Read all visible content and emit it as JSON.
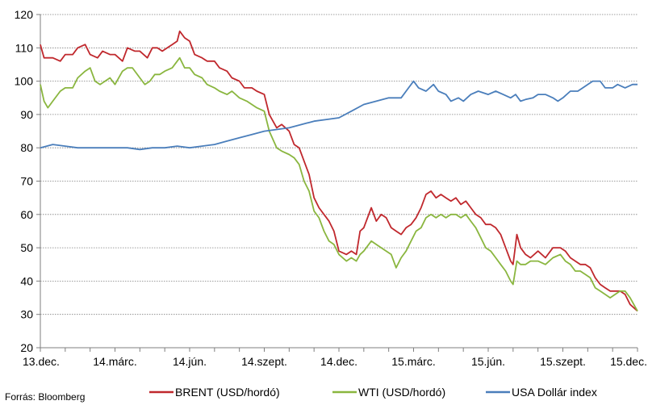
{
  "source_label": "Forrás: Bloomberg",
  "chart_data": {
    "type": "line",
    "x_tick_labels": [
      "13.dec.",
      "14.márc.",
      "14.jún.",
      "14.szept.",
      "14.dec.",
      "15.márc.",
      "15.jún.",
      "15.szept.",
      "15.dec."
    ],
    "ylim": [
      20,
      120
    ],
    "y_ticks": [
      20,
      30,
      40,
      50,
      60,
      70,
      80,
      90,
      100,
      110,
      120
    ],
    "grid": "horizontal dotted",
    "legend_position": "bottom",
    "x_unit": "months since 13.dec.",
    "series": [
      {
        "name": "BRENT (USD/hordó)",
        "color": "#c0282d",
        "points": [
          [
            0,
            111
          ],
          [
            0.15,
            107
          ],
          [
            0.5,
            107
          ],
          [
            0.8,
            106
          ],
          [
            1.0,
            108
          ],
          [
            1.3,
            108
          ],
          [
            1.5,
            110
          ],
          [
            1.8,
            111
          ],
          [
            2.0,
            108
          ],
          [
            2.3,
            107
          ],
          [
            2.5,
            109
          ],
          [
            2.8,
            108
          ],
          [
            3.0,
            108
          ],
          [
            3.3,
            106
          ],
          [
            3.5,
            110
          ],
          [
            3.8,
            109
          ],
          [
            4.0,
            109
          ],
          [
            4.3,
            107
          ],
          [
            4.5,
            110
          ],
          [
            4.7,
            110
          ],
          [
            4.9,
            109
          ],
          [
            5.1,
            110
          ],
          [
            5.3,
            111
          ],
          [
            5.5,
            112
          ],
          [
            5.6,
            115
          ],
          [
            5.8,
            113
          ],
          [
            6.0,
            112
          ],
          [
            6.2,
            108
          ],
          [
            6.5,
            107
          ],
          [
            6.7,
            106
          ],
          [
            7.0,
            106
          ],
          [
            7.2,
            104
          ],
          [
            7.5,
            103
          ],
          [
            7.7,
            101
          ],
          [
            8.0,
            100
          ],
          [
            8.2,
            98
          ],
          [
            8.5,
            98
          ],
          [
            8.7,
            97
          ],
          [
            9.0,
            96
          ],
          [
            9.2,
            90
          ],
          [
            9.5,
            86
          ],
          [
            9.7,
            87
          ],
          [
            10.0,
            85
          ],
          [
            10.2,
            81
          ],
          [
            10.4,
            80
          ],
          [
            10.6,
            76
          ],
          [
            10.8,
            72
          ],
          [
            11.0,
            65
          ],
          [
            11.2,
            62
          ],
          [
            11.4,
            60
          ],
          [
            11.6,
            58
          ],
          [
            11.8,
            55
          ],
          [
            12.0,
            49
          ],
          [
            12.3,
            48
          ],
          [
            12.5,
            49
          ],
          [
            12.7,
            48
          ],
          [
            12.85,
            55
          ],
          [
            13.0,
            56
          ],
          [
            13.3,
            62
          ],
          [
            13.5,
            58
          ],
          [
            13.7,
            60
          ],
          [
            13.9,
            59
          ],
          [
            14.1,
            56
          ],
          [
            14.3,
            55
          ],
          [
            14.5,
            54
          ],
          [
            14.7,
            56
          ],
          [
            14.9,
            57
          ],
          [
            15.1,
            59
          ],
          [
            15.3,
            62
          ],
          [
            15.5,
            66
          ],
          [
            15.7,
            67
          ],
          [
            15.9,
            65
          ],
          [
            16.1,
            66
          ],
          [
            16.3,
            65
          ],
          [
            16.5,
            64
          ],
          [
            16.7,
            65
          ],
          [
            16.9,
            63
          ],
          [
            17.1,
            64
          ],
          [
            17.3,
            62
          ],
          [
            17.5,
            60
          ],
          [
            17.7,
            59
          ],
          [
            17.9,
            57
          ],
          [
            18.1,
            57
          ],
          [
            18.3,
            56
          ],
          [
            18.5,
            54
          ],
          [
            18.7,
            50
          ],
          [
            18.9,
            46
          ],
          [
            19.0,
            45
          ],
          [
            19.15,
            54
          ],
          [
            19.3,
            50
          ],
          [
            19.5,
            48
          ],
          [
            19.7,
            47
          ],
          [
            20.0,
            49
          ],
          [
            20.3,
            47
          ],
          [
            20.6,
            50
          ],
          [
            20.9,
            50
          ],
          [
            21.1,
            49
          ],
          [
            21.3,
            47
          ],
          [
            21.5,
            46
          ],
          [
            21.7,
            45
          ],
          [
            21.9,
            45
          ],
          [
            22.1,
            44
          ],
          [
            22.3,
            41
          ],
          [
            22.5,
            39
          ],
          [
            22.7,
            38
          ],
          [
            22.9,
            37
          ],
          [
            23.1,
            37
          ],
          [
            23.3,
            37
          ],
          [
            23.5,
            36
          ],
          [
            23.7,
            33
          ],
          [
            24.0,
            31
          ]
        ]
      },
      {
        "name": "WTI (USD/hordó)",
        "color": "#8ab63f",
        "points": [
          [
            0,
            99
          ],
          [
            0.15,
            94
          ],
          [
            0.3,
            92
          ],
          [
            0.5,
            94
          ],
          [
            0.8,
            97
          ],
          [
            1.0,
            98
          ],
          [
            1.3,
            98
          ],
          [
            1.5,
            101
          ],
          [
            1.8,
            103
          ],
          [
            2.0,
            104
          ],
          [
            2.2,
            100
          ],
          [
            2.4,
            99
          ],
          [
            2.6,
            100
          ],
          [
            2.8,
            101
          ],
          [
            3.0,
            99
          ],
          [
            3.3,
            103
          ],
          [
            3.5,
            104
          ],
          [
            3.7,
            104
          ],
          [
            4.0,
            101
          ],
          [
            4.2,
            99
          ],
          [
            4.4,
            100
          ],
          [
            4.6,
            102
          ],
          [
            4.8,
            102
          ],
          [
            5.0,
            103
          ],
          [
            5.3,
            104
          ],
          [
            5.6,
            107
          ],
          [
            5.8,
            104
          ],
          [
            6.0,
            104
          ],
          [
            6.2,
            102
          ],
          [
            6.5,
            101
          ],
          [
            6.7,
            99
          ],
          [
            7.0,
            98
          ],
          [
            7.2,
            97
          ],
          [
            7.5,
            96
          ],
          [
            7.7,
            97
          ],
          [
            8.0,
            95
          ],
          [
            8.3,
            94
          ],
          [
            8.5,
            93
          ],
          [
            8.7,
            92
          ],
          [
            9.0,
            91
          ],
          [
            9.2,
            85
          ],
          [
            9.5,
            80
          ],
          [
            9.7,
            79
          ],
          [
            10.0,
            78
          ],
          [
            10.2,
            77
          ],
          [
            10.4,
            75
          ],
          [
            10.6,
            70
          ],
          [
            10.8,
            67
          ],
          [
            11.0,
            61
          ],
          [
            11.2,
            59
          ],
          [
            11.4,
            55
          ],
          [
            11.6,
            52
          ],
          [
            11.8,
            51
          ],
          [
            12.0,
            48
          ],
          [
            12.3,
            46
          ],
          [
            12.5,
            47
          ],
          [
            12.7,
            46
          ],
          [
            12.85,
            48
          ],
          [
            13.0,
            49
          ],
          [
            13.3,
            52
          ],
          [
            13.5,
            51
          ],
          [
            13.7,
            50
          ],
          [
            13.9,
            49
          ],
          [
            14.1,
            48
          ],
          [
            14.3,
            44
          ],
          [
            14.5,
            47
          ],
          [
            14.7,
            49
          ],
          [
            14.9,
            52
          ],
          [
            15.1,
            55
          ],
          [
            15.3,
            56
          ],
          [
            15.5,
            59
          ],
          [
            15.7,
            60
          ],
          [
            15.9,
            59
          ],
          [
            16.1,
            60
          ],
          [
            16.3,
            59
          ],
          [
            16.5,
            60
          ],
          [
            16.7,
            60
          ],
          [
            16.9,
            59
          ],
          [
            17.1,
            60
          ],
          [
            17.3,
            58
          ],
          [
            17.5,
            56
          ],
          [
            17.7,
            53
          ],
          [
            17.9,
            50
          ],
          [
            18.1,
            49
          ],
          [
            18.3,
            47
          ],
          [
            18.5,
            45
          ],
          [
            18.7,
            43
          ],
          [
            18.9,
            40
          ],
          [
            19.0,
            39
          ],
          [
            19.15,
            46
          ],
          [
            19.3,
            45
          ],
          [
            19.5,
            45
          ],
          [
            19.7,
            46
          ],
          [
            20.0,
            46
          ],
          [
            20.3,
            45
          ],
          [
            20.6,
            47
          ],
          [
            20.9,
            48
          ],
          [
            21.1,
            46
          ],
          [
            21.3,
            45
          ],
          [
            21.5,
            43
          ],
          [
            21.7,
            43
          ],
          [
            21.9,
            42
          ],
          [
            22.1,
            41
          ],
          [
            22.3,
            38
          ],
          [
            22.5,
            37
          ],
          [
            22.7,
            36
          ],
          [
            22.9,
            35
          ],
          [
            23.1,
            36
          ],
          [
            23.3,
            37
          ],
          [
            23.5,
            37
          ],
          [
            23.7,
            35
          ],
          [
            24.0,
            31
          ]
        ]
      },
      {
        "name": "USA Dollár index",
        "color": "#4a7ebb",
        "points": [
          [
            0,
            80
          ],
          [
            0.5,
            81
          ],
          [
            1.0,
            80.5
          ],
          [
            1.5,
            80
          ],
          [
            2.0,
            80
          ],
          [
            2.5,
            80
          ],
          [
            3.0,
            80
          ],
          [
            3.5,
            80
          ],
          [
            4.0,
            79.5
          ],
          [
            4.5,
            80
          ],
          [
            5.0,
            80
          ],
          [
            5.5,
            80.5
          ],
          [
            6.0,
            80
          ],
          [
            6.5,
            80.5
          ],
          [
            7.0,
            81
          ],
          [
            7.5,
            82
          ],
          [
            8.0,
            83
          ],
          [
            8.5,
            84
          ],
          [
            9.0,
            85
          ],
          [
            9.5,
            85.5
          ],
          [
            10.0,
            86
          ],
          [
            10.5,
            87
          ],
          [
            11.0,
            88
          ],
          [
            11.5,
            88.5
          ],
          [
            12.0,
            89
          ],
          [
            12.5,
            91
          ],
          [
            13.0,
            93
          ],
          [
            13.5,
            94
          ],
          [
            14.0,
            95
          ],
          [
            14.5,
            95
          ],
          [
            14.8,
            98
          ],
          [
            15.0,
            100
          ],
          [
            15.2,
            98
          ],
          [
            15.5,
            97
          ],
          [
            15.8,
            99
          ],
          [
            16.0,
            97
          ],
          [
            16.3,
            96
          ],
          [
            16.5,
            94
          ],
          [
            16.8,
            95
          ],
          [
            17.0,
            94
          ],
          [
            17.3,
            96
          ],
          [
            17.6,
            97
          ],
          [
            18.0,
            96
          ],
          [
            18.3,
            97
          ],
          [
            18.6,
            96
          ],
          [
            18.9,
            95
          ],
          [
            19.1,
            96
          ],
          [
            19.3,
            94
          ],
          [
            19.5,
            94.5
          ],
          [
            19.8,
            95
          ],
          [
            20.0,
            96
          ],
          [
            20.3,
            96
          ],
          [
            20.6,
            95
          ],
          [
            20.8,
            94
          ],
          [
            21.0,
            95
          ],
          [
            21.3,
            97
          ],
          [
            21.6,
            97
          ],
          [
            21.8,
            98
          ],
          [
            22.0,
            99
          ],
          [
            22.2,
            100
          ],
          [
            22.5,
            100
          ],
          [
            22.7,
            98
          ],
          [
            23.0,
            98
          ],
          [
            23.2,
            99
          ],
          [
            23.5,
            98
          ],
          [
            23.8,
            99
          ],
          [
            24.0,
            99
          ]
        ]
      }
    ]
  }
}
